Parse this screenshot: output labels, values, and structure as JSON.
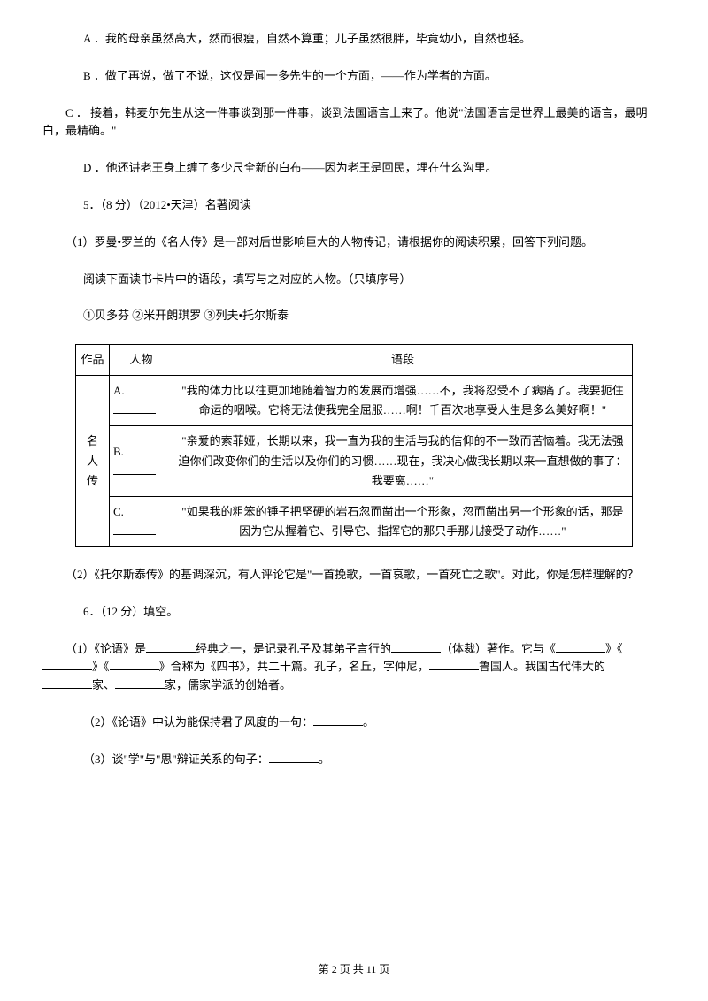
{
  "options": {
    "a": "A ．我的母亲虽然高大，然而很瘦，自然不算重；儿子虽然很胖，毕竟幼小，自然也轻。",
    "b": "B ．做了再说，做了不说，这仅是闻一多先生的一个方面，——作为学者的方面。",
    "c": "C ． 接着，韩麦尔先生从这一件事谈到那一件事，谈到法国语言上来了。他说\"法国语言是世界上最美的语言，最明白，最精确。\"",
    "d": "D ．他还讲老王身上缠了多少尺全新的白布——因为老王是回民，埋在什么沟里。"
  },
  "q5": {
    "header": "5．（8 分）（2012•天津）名著阅读",
    "p1": "（1）罗曼•罗兰的《名人传》是一部对后世影响巨大的人物传记，请根据你的阅读积累，回答下列问题。",
    "p2": "阅读下面读书卡片中的语段，填写与之对应的人物。（只填序号）",
    "p3": "①贝多芬      ②米开朗琪罗     ③列夫•托尔斯泰",
    "table": {
      "headers": {
        "work": "作品",
        "person": "人物",
        "passage": "语段"
      },
      "work_name": "名 人 传",
      "rows": {
        "a": {
          "label": "A.",
          "text": "\"我的体力比以往更加地随着智力的发展而增强……不，我将忍受不了病痛了。我要扼住命运的咽喉。它将无法使我完全屈服……啊！千百次地享受人生是多么美好啊！\""
        },
        "b": {
          "label": "B.",
          "text": "\"亲爱的索菲娅，长期以来，我一直为我的生活与我的信仰的不一致而苦恼着。我无法强迫你们改变你们的生活以及你们的习惯……现在，我决心做我长期以来一直想做的事了：我要离……\""
        },
        "c": {
          "label": "C.",
          "text": "\"如果我的粗笨的锤子把坚硬的岩石忽而凿出一个形象，忽而凿出另一个形象的话，那是因为它从握着它、引导它、指挥它的那只手那儿接受了动作……\""
        }
      }
    },
    "p4": "（2）《托尔斯泰传》的基调深沉，有人评论它是\"一首挽歌，一首哀歌，一首死亡之歌\"。对此，你是怎样理解的？"
  },
  "q6": {
    "header": "6．（12 分）填空。",
    "p1_a": "（1）《论语》是",
    "p1_b": "经典之一，是记录孔子及其弟子言行的",
    "p1_c": "（体裁）著作。它与《",
    "p1_d": "》《",
    "p1_e": "》《",
    "p1_f": "》合称为《四书》，共二十篇。孔子，名丘，字仲尼，",
    "p1_g": "鲁国人。我国古代伟大的",
    "p1_h": "家、",
    "p1_i": "家，儒家学派的创始者。",
    "p2_a": "（2）《论语》中认为能保持君子风度的一句：",
    "p2_b": "。",
    "p3_a": "（3）谈\"学\"与\"思\"辩证关系的句子：",
    "p3_b": "。"
  },
  "footer": "第 2 页 共 11 页"
}
